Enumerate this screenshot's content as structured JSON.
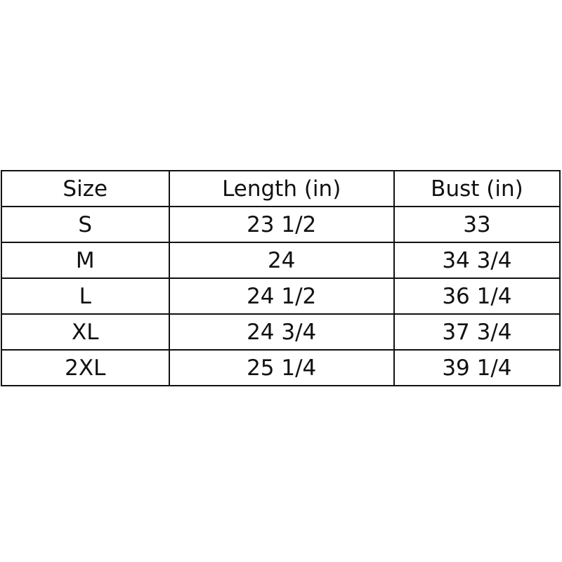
{
  "chart_data": {
    "type": "table",
    "title": "",
    "columns": [
      "Size",
      "Length (in)",
      "Bust (in)"
    ],
    "rows": [
      [
        "S",
        "23 1/2",
        "33"
      ],
      [
        "M",
        "24",
        "34 3/4"
      ],
      [
        "L",
        "24 1/2",
        "36 1/4"
      ],
      [
        "XL",
        "24 3/4",
        "37 3/4"
      ],
      [
        "2XL",
        "25 1/4",
        "39 1/4"
      ]
    ]
  },
  "colors": {
    "background": "#ffffff",
    "text": "#111111",
    "border": "#111111"
  }
}
